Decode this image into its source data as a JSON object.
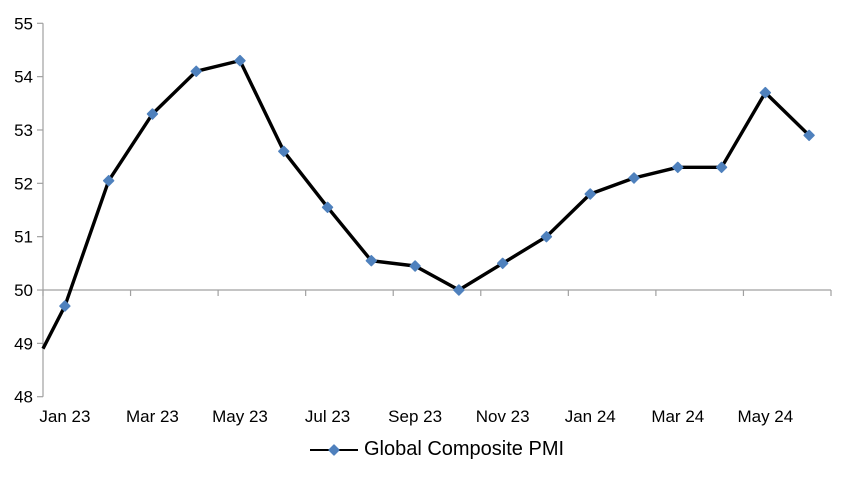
{
  "chart_data": {
    "type": "line",
    "categories": [
      "Jan 23",
      "Feb 23",
      "Mar 23",
      "Apr 23",
      "May 23",
      "Jun 23",
      "Jul 23",
      "Aug 23",
      "Sep 23",
      "Oct 23",
      "Nov 23",
      "Dec 23",
      "Jan 24",
      "Feb 24",
      "Mar 24",
      "Apr 24",
      "May 24",
      "Jun 24"
    ],
    "series": [
      {
        "name": "Global Composite PMI",
        "values": [
          49.7,
          52.05,
          53.3,
          54.1,
          54.3,
          52.6,
          51.55,
          50.55,
          50.45,
          50.0,
          50.5,
          51.0,
          51.8,
          52.1,
          52.3,
          52.3,
          53.7,
          52.9
        ],
        "line_enters_left_edge_at": 48.9,
        "line_color": "#000000",
        "marker": "diamond",
        "marker_color": "#4F81BD"
      }
    ],
    "x_tick_labels": [
      "Jan 23",
      "Mar 23",
      "May 23",
      "Jul 23",
      "Sep 23",
      "Nov 23",
      "Jan 24",
      "Mar 24",
      "May 24"
    ],
    "x_label_interval": 2,
    "y_ticks": [
      48,
      49,
      50,
      51,
      52,
      53,
      54,
      55
    ],
    "ylim": [
      48,
      55
    ],
    "x_axis_crosses_at": 50,
    "gridlines": "none",
    "legend": {
      "position": "bottom-center",
      "label": "Global Composite PMI"
    },
    "colors": {
      "axis": "#A0A0A0",
      "text": "#000000",
      "background": "#FFFFFF"
    }
  }
}
